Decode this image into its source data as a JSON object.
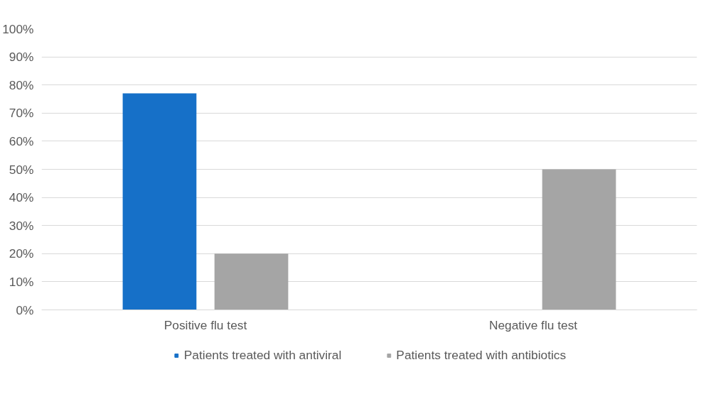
{
  "chart_data": {
    "type": "bar",
    "categories": [
      "Positive flu test",
      "Negative flu test"
    ],
    "series": [
      {
        "name": "Patients treated with antiviral",
        "color": "#1670c8",
        "values": [
          77,
          0
        ]
      },
      {
        "name": "Patients treated with antibiotics",
        "color": "#a5a5a5",
        "values": [
          20,
          50
        ]
      }
    ],
    "ylim": [
      0,
      100
    ],
    "yticks": [
      {
        "value": 0,
        "label": "0%"
      },
      {
        "value": 10,
        "label": "10%"
      },
      {
        "value": 20,
        "label": "20%"
      },
      {
        "value": 30,
        "label": "30%"
      },
      {
        "value": 40,
        "label": "40%"
      },
      {
        "value": 50,
        "label": "50%"
      },
      {
        "value": 60,
        "label": "60%"
      },
      {
        "value": 70,
        "label": "70%"
      },
      {
        "value": 80,
        "label": "80%"
      },
      {
        "value": 90,
        "label": "90%"
      },
      {
        "value": 100,
        "label": "100%"
      }
    ],
    "grid": "y",
    "legend": "bottom"
  }
}
